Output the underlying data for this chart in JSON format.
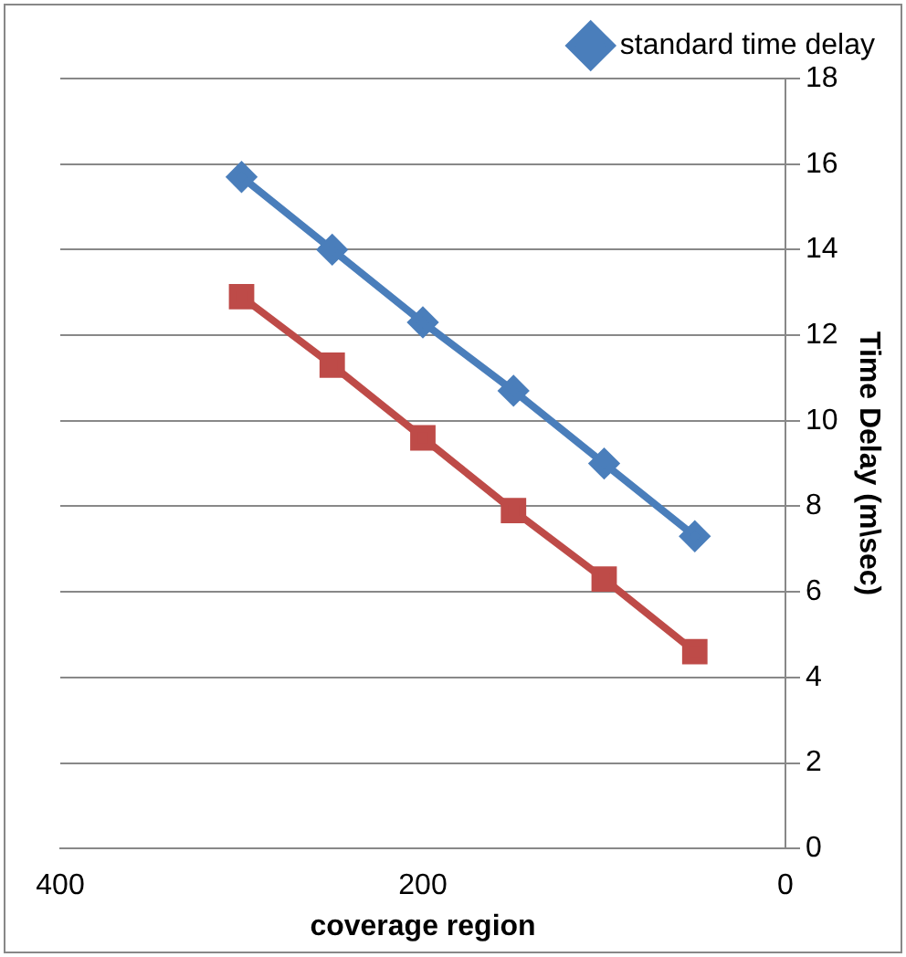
{
  "chart_data": {
    "type": "line",
    "xlabel": "coverage region",
    "ylabel": "Time Delay (m\\sec)",
    "x": [
      300,
      250,
      200,
      150,
      100,
      50
    ],
    "series": [
      {
        "name": "standard time delay",
        "color": "#4a7ebb",
        "marker": "diamond",
        "values": [
          15.7,
          14.0,
          12.3,
          10.7,
          9.0,
          7.3
        ]
      },
      {
        "color": "#be4b48",
        "marker": "square",
        "values": [
          12.9,
          11.3,
          9.6,
          7.9,
          6.3,
          4.6
        ]
      }
    ],
    "xlim": [
      400,
      0
    ],
    "xticks": [
      400,
      200,
      0
    ],
    "ylim": [
      0,
      18
    ],
    "yticks": [
      0,
      2,
      4,
      6,
      8,
      10,
      12,
      14,
      16,
      18
    ],
    "grid": "y",
    "legend": "top right",
    "line_style": "solid"
  }
}
